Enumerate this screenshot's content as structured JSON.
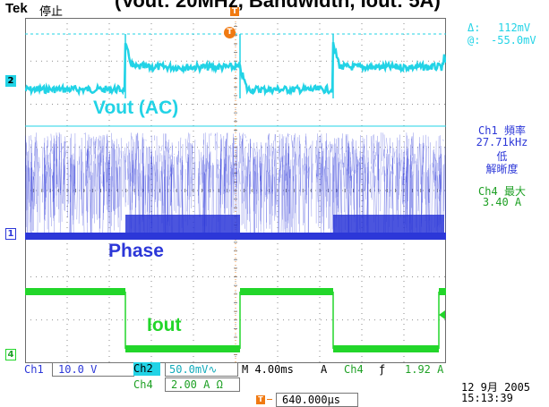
{
  "header": {
    "brand": "Tek",
    "status": "停止",
    "banner_text": "(Vout: 20MHz, Bandwidth, Iout: 5A)"
  },
  "channels": {
    "ch2_marker": "2",
    "ch1_marker": "1",
    "ch4_marker": "4",
    "trigger_marker": "T"
  },
  "traces": {
    "vout_label": "Vout (AC)",
    "phase_label": "Phase",
    "iout_label": "Iout"
  },
  "cursor": {
    "delta_symbol": "Δ:",
    "delta_value": "112mV",
    "at_symbol": "@:",
    "at_value": "-55.0mV"
  },
  "measurements": {
    "ch1_freq_label": "Ch1 頻率",
    "ch1_freq_value": "27.71kHz",
    "ch1_resolution_1": "低",
    "ch1_resolution_2": "解晰度",
    "ch4_max_label": "Ch4 最大",
    "ch4_max_value": "3.40 A"
  },
  "bottom": {
    "ch1_label": "Ch1",
    "ch1_scale": "10.0 V",
    "ch2_label": "Ch2",
    "ch2_scale": "50.0mV∿",
    "ch4_label": "Ch4",
    "ch4_scale": "2.00 A Ω",
    "timebase": "M 4.00ms",
    "trig_mode": "A",
    "trig_source": "Ch4",
    "trig_slope": "ƒ",
    "trig_level": "1.92 A",
    "trig_offset": "640.000µs",
    "date": "12 9月 2005",
    "time": "15:13:39"
  },
  "colors": {
    "ch1": "#2c37d8",
    "ch2": "#22d3e6",
    "ch4": "#22d62a",
    "trigger": "#f07a12",
    "grid": "#6c6c6c"
  }
}
